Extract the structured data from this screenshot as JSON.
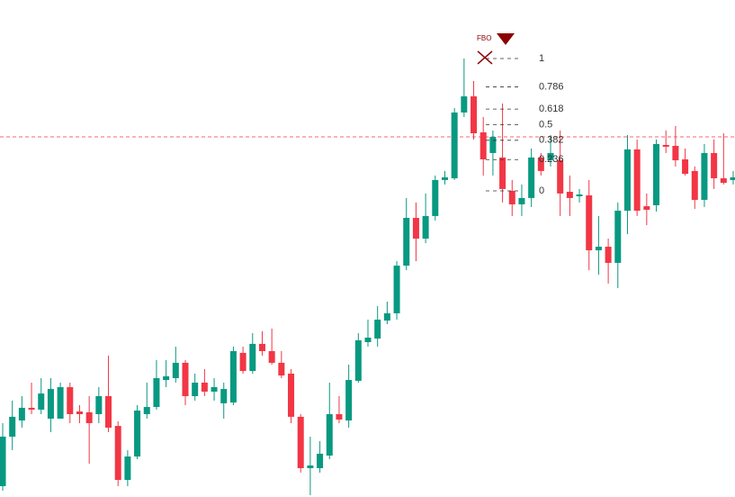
{
  "chart_data": {
    "type": "candlestick",
    "up_color": "#089981",
    "down_color": "#f23645",
    "ylim": [
      -2.313,
      1.442
    ],
    "open": [
      -2.231,
      -1.857,
      -1.735,
      -1.639,
      -1.653,
      -1.721,
      -1.721,
      -1.483,
      -1.667,
      -1.673,
      -1.687,
      -1.551,
      -1.776,
      -2.184,
      -2.007,
      -1.687,
      -1.633,
      -1.429,
      -1.415,
      -1.299,
      -1.551,
      -1.449,
      -1.517,
      -1.605,
      -1.599,
      -1.224,
      -1.361,
      -1.156,
      -1.211,
      -1.299,
      -1.381,
      -1.707,
      -2.095,
      -2.095,
      -2.0,
      -1.687,
      -1.735,
      -1.435,
      -1.143,
      -1.116,
      -0.98,
      -0.925,
      -0.565,
      -0.204,
      -0.361,
      -0.19,
      0.082,
      0.095,
      0.592,
      0.714,
      0.442,
      0.286,
      0.252,
      0,
      -0.102,
      -0.054,
      0.252,
      0.231,
      0.231,
      -0.007,
      -0.041,
      -0.034,
      -0.449,
      -0.422,
      -0.544,
      -0.15,
      0.313,
      -0.116,
      -0.109,
      0.347,
      0.34,
      0.238,
      0.15,
      -0.068,
      0.286,
      0.095,
      0.082
    ],
    "high": [
      -1.755,
      -1.585,
      -1.551,
      -1.449,
      -1.415,
      -1.415,
      -1.449,
      -1.449,
      -1.619,
      -1.551,
      -1.483,
      -1.245,
      -1.741,
      -1.959,
      -1.619,
      -1.449,
      -1.279,
      -1.279,
      -1.177,
      -1.279,
      -1.381,
      -1.347,
      -1.415,
      -1.449,
      -1.177,
      -1.177,
      -1.075,
      -1.061,
      -1.041,
      -1.211,
      -1.347,
      -1.687,
      -1.857,
      -1.891,
      -1.449,
      -1.551,
      -1.313,
      -1.075,
      -0.973,
      -0.871,
      -0.837,
      -0.531,
      -0.054,
      -0.088,
      -0.02,
      0.116,
      0.15,
      0.626,
      1.0,
      0.83,
      0.558,
      0.456,
      0.66,
      0.082,
      0.048,
      0.32,
      0.286,
      0.422,
      0.456,
      0.116,
      0.014,
      0.082,
      -0.19,
      -0.361,
      -0.088,
      0.422,
      0.388,
      -0.02,
      0.388,
      0.456,
      0.49,
      0.32,
      0.184,
      0.354,
      0.388,
      0.435,
      0.15
    ],
    "low": [
      -2.265,
      -1.959,
      -1.789,
      -1.687,
      -1.687,
      -1.823,
      -1.721,
      -1.755,
      -1.755,
      -2.061,
      -1.755,
      -1.823,
      -2.231,
      -2.231,
      -2.027,
      -1.721,
      -1.653,
      -1.483,
      -1.449,
      -1.619,
      -1.585,
      -1.551,
      -1.585,
      -1.721,
      -1.619,
      -1.381,
      -1.381,
      -1.245,
      -1.313,
      -1.415,
      -1.755,
      -2.129,
      -2.299,
      -2.129,
      -2.027,
      -1.755,
      -1.789,
      -1.449,
      -1.177,
      -1.177,
      -1.007,
      -0.973,
      -0.599,
      -0.531,
      -0.395,
      -0.224,
      0.048,
      0.082,
      0.558,
      0.388,
      0.116,
      0.116,
      -0.088,
      -0.19,
      -0.19,
      -0.122,
      0.116,
      0.184,
      -0.19,
      -0.19,
      -0.088,
      -0.599,
      -0.633,
      -0.701,
      -0.735,
      -0.327,
      -0.19,
      -0.259,
      -0.156,
      0.286,
      0.184,
      0.116,
      -0.136,
      -0.122,
      0.014,
      0.048,
      0.048
    ],
    "close": [
      -1.857,
      -1.707,
      -1.639,
      -1.653,
      -1.531,
      -1.497,
      -1.483,
      -1.687,
      -1.687,
      -1.755,
      -1.551,
      -1.789,
      -2.184,
      -2.007,
      -1.66,
      -1.633,
      -1.415,
      -1.401,
      -1.299,
      -1.551,
      -1.449,
      -1.517,
      -1.483,
      -1.497,
      -1.211,
      -1.361,
      -1.156,
      -1.211,
      -1.299,
      -1.395,
      -1.707,
      -2.095,
      -2.075,
      -1.986,
      -1.687,
      -1.728,
      -1.429,
      -1.129,
      -1.109,
      -0.973,
      -0.925,
      -0.565,
      -0.204,
      -0.361,
      -0.19,
      0.082,
      0.102,
      0.592,
      0.714,
      0.435,
      0.238,
      0.408,
      0.014,
      -0.102,
      -0.054,
      0.252,
      0.15,
      0.286,
      -0.02,
      -0.054,
      -0.027,
      -0.449,
      -0.422,
      -0.544,
      -0.15,
      0.313,
      -0.15,
      -0.143,
      0.354,
      0.333,
      0.231,
      0.129,
      -0.068,
      0.286,
      0.095,
      0.061,
      0.102
    ],
    "price_line": 0.408,
    "price_line_color": "#f23645",
    "fib_label": "FBO",
    "fib_color": "#8b0000",
    "fib_levels": [
      1,
      0.786,
      0.618,
      0.5,
      0.382,
      0.236,
      0
    ]
  }
}
